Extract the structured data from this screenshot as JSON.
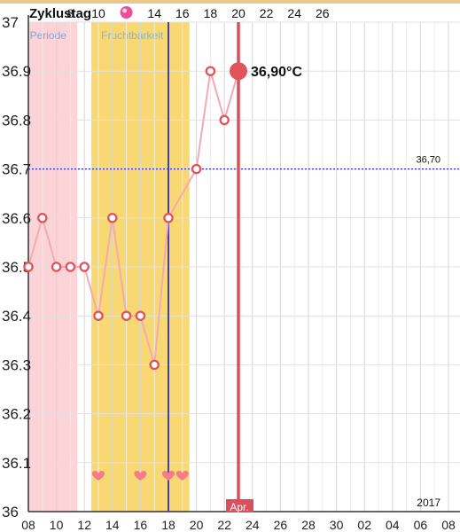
{
  "header": {
    "title": "Zyklustag",
    "cycle_day_labels": [
      "8",
      "10",
      "14",
      "16",
      "18",
      "20",
      "22",
      "24",
      "26"
    ],
    "today_marker": "pink-dot-icon"
  },
  "chart_data": {
    "type": "line",
    "title": "",
    "xlabel": "",
    "ylabel": "",
    "ylim": [
      36.0,
      37.0
    ],
    "y_ticks": [
      "36",
      "36.1",
      "36.2",
      "36.3",
      "36.4",
      "36.5",
      "36.6",
      "36.7",
      "36.8",
      "36.9",
      "37"
    ],
    "x_ticks": [
      "08",
      "10",
      "12",
      "14",
      "16",
      "18",
      "20",
      "22",
      "24",
      "26",
      "28",
      "30",
      "02",
      "04",
      "06",
      "08"
    ],
    "year_label": "2017",
    "month_label": "Apr.",
    "series": [
      {
        "x": [
          8,
          9,
          10,
          11,
          12,
          13,
          14,
          15,
          16,
          17,
          18,
          20,
          21,
          22,
          23
        ],
        "values": [
          36.5,
          36.6,
          36.5,
          36.5,
          36.5,
          36.4,
          36.6,
          36.4,
          36.4,
          36.3,
          36.6,
          36.7,
          36.9,
          36.8,
          36.9
        ]
      }
    ],
    "cover_line": {
      "value": 36.7,
      "label": "36,70"
    },
    "current": {
      "x": 23,
      "value": 36.9,
      "label": "36,90°C"
    },
    "bands": [
      {
        "label": "Periode",
        "x_from": 8,
        "x_to": 11.5,
        "color": "#fcd3d6"
      },
      {
        "label": "Fruchtbarkeit",
        "x_from": 12.5,
        "x_to": 19.5,
        "color": "#f8d873"
      }
    ],
    "ovulation_line_x": 18,
    "today_line_x": 23,
    "hearts_x": [
      13,
      16,
      18,
      19
    ],
    "colors": {
      "line": "#f3aab2",
      "marker": "#e0535d",
      "today": "#d9505c",
      "ovulation": "#4a3fa8",
      "cover": "#2a2ad8"
    }
  }
}
